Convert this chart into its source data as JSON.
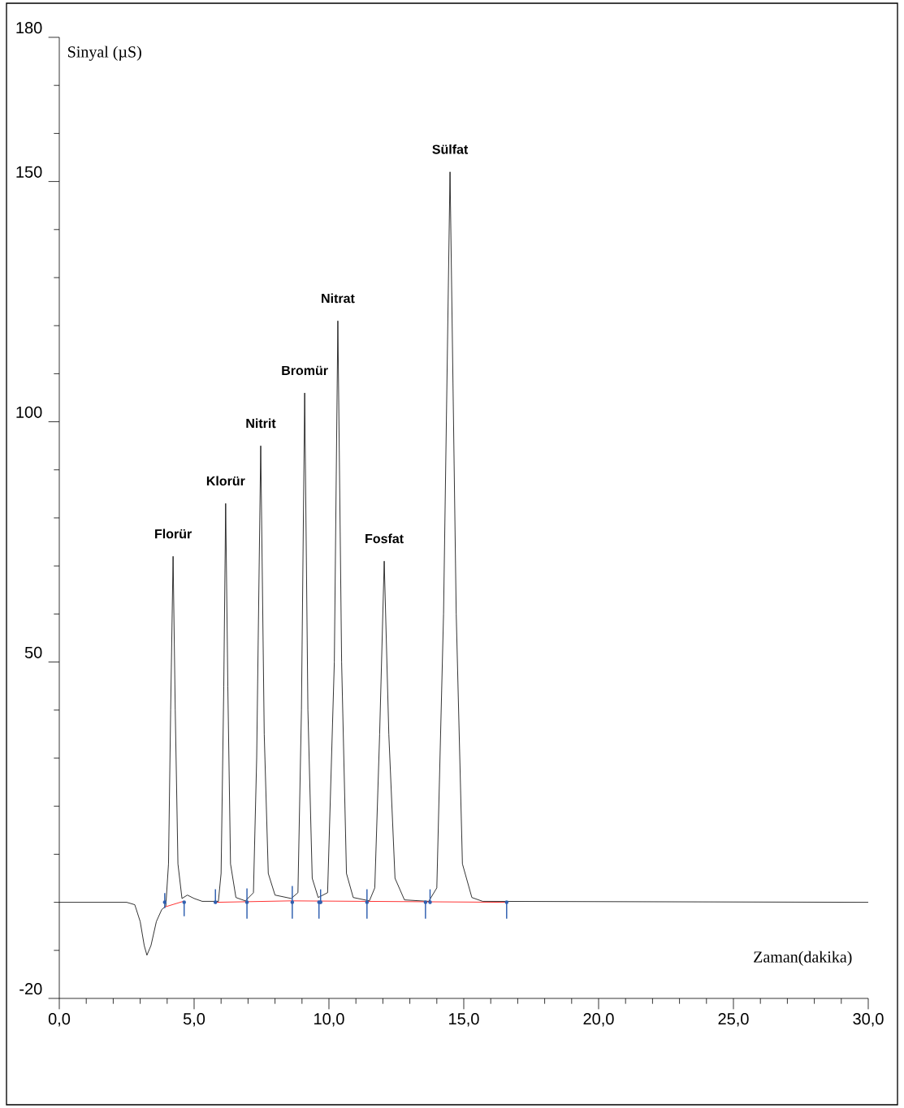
{
  "chart_data": {
    "type": "line",
    "xlabel": "Zaman(dakika)",
    "ylabel": "Sinyal (µS)",
    "xlim": [
      0,
      30
    ],
    "ylim": [
      -20,
      180
    ],
    "xticks": [
      {
        "value": 0,
        "label": "0,0"
      },
      {
        "value": 1,
        "label": null
      },
      {
        "value": 2,
        "label": null
      },
      {
        "value": 3,
        "label": null
      },
      {
        "value": 4,
        "label": null
      },
      {
        "value": 5,
        "label": "5,0"
      },
      {
        "value": 6,
        "label": null
      },
      {
        "value": 7,
        "label": null
      },
      {
        "value": 8,
        "label": null
      },
      {
        "value": 9,
        "label": null
      },
      {
        "value": 10,
        "label": "10,0"
      },
      {
        "value": 11,
        "label": null
      },
      {
        "value": 12,
        "label": null
      },
      {
        "value": 13,
        "label": null
      },
      {
        "value": 14,
        "label": null
      },
      {
        "value": 15,
        "label": "15,0"
      },
      {
        "value": 16,
        "label": null
      },
      {
        "value": 17,
        "label": null
      },
      {
        "value": 18,
        "label": null
      },
      {
        "value": 19,
        "label": null
      },
      {
        "value": 20,
        "label": "20,0"
      },
      {
        "value": 21,
        "label": null
      },
      {
        "value": 22,
        "label": null
      },
      {
        "value": 23,
        "label": null
      },
      {
        "value": 24,
        "label": null
      },
      {
        "value": 25,
        "label": "25,0"
      },
      {
        "value": 26,
        "label": null
      },
      {
        "value": 27,
        "label": null
      },
      {
        "value": 28,
        "label": null
      },
      {
        "value": 29,
        "label": null
      },
      {
        "value": 30,
        "label": "30,0"
      }
    ],
    "yticks": [
      -20,
      {
        "value": -10,
        "label": null
      },
      {
        "value": 0,
        "label": null
      },
      {
        "value": 10,
        "label": null
      },
      {
        "value": 20,
        "label": null
      },
      {
        "value": 30,
        "label": null
      },
      {
        "value": 40,
        "label": null
      },
      50,
      {
        "value": 60,
        "label": null
      },
      {
        "value": 70,
        "label": null
      },
      {
        "value": 80,
        "label": null
      },
      {
        "value": 90,
        "label": null
      },
      100,
      {
        "value": 110,
        "label": null
      },
      {
        "value": 120,
        "label": null
      },
      {
        "value": 130,
        "label": null
      },
      {
        "value": 140,
        "label": null
      },
      150,
      {
        "value": 160,
        "label": null
      },
      {
        "value": 170,
        "label": null
      },
      180
    ],
    "marker": "none",
    "series": [
      {
        "type": "line",
        "color": "#000000",
        "x": [
          0,
          2.5,
          2.8,
          3.0,
          3.15,
          3.25,
          3.4,
          3.6,
          3.8,
          3.95,
          4.05,
          4.13,
          4.22,
          4.3,
          4.4,
          4.55,
          4.75,
          5.0,
          5.3,
          5.9,
          6.0,
          6.1,
          6.17,
          6.25,
          6.35,
          6.55,
          6.9,
          7.2,
          7.32,
          7.47,
          7.6,
          7.75,
          8.0,
          8.6,
          8.85,
          8.98,
          9.1,
          9.22,
          9.38,
          9.6,
          9.95,
          10.2,
          10.33,
          10.47,
          10.65,
          10.9,
          11.5,
          11.7,
          11.88,
          12.05,
          12.22,
          12.45,
          12.8,
          13.7,
          14.0,
          14.25,
          14.49,
          14.72,
          14.95,
          15.3,
          15.7,
          30
        ],
        "values": [
          0,
          0,
          -0.5,
          -4,
          -9,
          -11,
          -9,
          -4,
          -1.5,
          -0.8,
          8,
          40,
          72,
          40,
          8,
          0.8,
          1.5,
          0.8,
          0.2,
          0.2,
          6,
          45,
          83,
          45,
          8,
          1,
          0.3,
          2,
          30,
          95,
          35,
          6,
          1.5,
          0.8,
          2,
          40,
          106,
          40,
          5,
          1,
          2,
          50,
          121,
          50,
          6,
          1,
          0.3,
          3,
          35,
          71,
          35,
          5,
          0.5,
          0.2,
          3,
          60,
          152,
          60,
          8,
          1,
          0.2,
          0
        ]
      },
      {
        "type": "line",
        "color": "#ff0000",
        "x": [
          3.9,
          4.6,
          5.2,
          5.8,
          8.6,
          16.6
        ],
        "values": [
          -1.0,
          0.2,
          null,
          0,
          0.3,
          0
        ]
      },
      {
        "type": "scatter",
        "color": "#3060b0",
        "x": [
          3.91,
          4.63,
          5.79,
          6.96,
          8.64,
          9.63,
          9.69,
          11.41,
          13.58,
          13.75,
          16.59
        ],
        "values": [
          0,
          0,
          0,
          0,
          0,
          0,
          0,
          0,
          0,
          0,
          0
        ],
        "errors": [
          [
            -1.2,
            1.9
          ],
          [
            -2.9,
            0.2
          ],
          [
            -0.3,
            2.7
          ],
          [
            -3.4,
            2.9
          ],
          [
            -3.4,
            3.4
          ],
          [
            -3.4,
            -0.3
          ],
          [
            -0.3,
            2.7
          ],
          [
            -3.4,
            2.7
          ],
          [
            -3.4,
            -0.3
          ],
          [
            -0.3,
            2.7
          ],
          [
            -3.4,
            -0.3
          ]
        ]
      }
    ],
    "annotations": [
      {
        "text": "Florür",
        "x": 4.22,
        "y": 72
      },
      {
        "text": "Klorür",
        "x": 6.17,
        "y": 83
      },
      {
        "text": "Nitrit",
        "x": 7.47,
        "y": 95
      },
      {
        "text": "Bromür",
        "x": 9.1,
        "y": 106
      },
      {
        "text": "Nitrat",
        "x": 10.33,
        "y": 121
      },
      {
        "text": "Fosfat",
        "x": 12.05,
        "y": 71
      },
      {
        "text": "Sülfat",
        "x": 14.49,
        "y": 152
      }
    ]
  }
}
